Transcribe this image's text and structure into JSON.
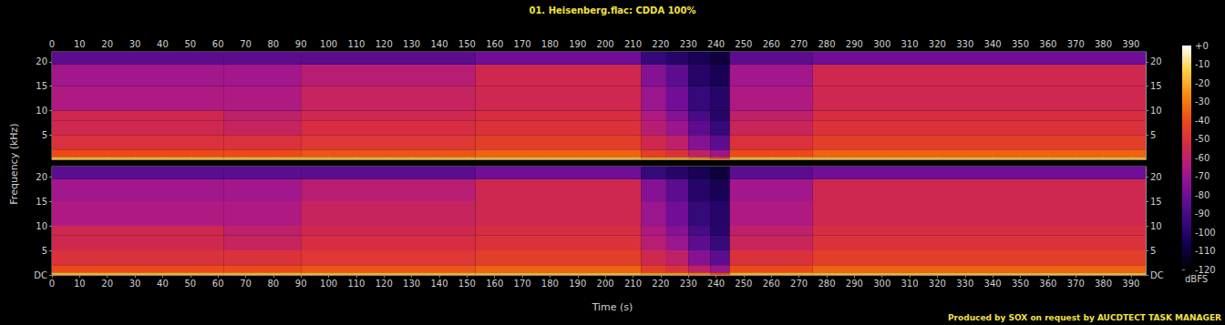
{
  "chart_data": {
    "type": "heatmap",
    "title": "01. Heisenberg.flac: CDDA 100%",
    "footer": "Produced by SOX on request by AUCDTECT TASK MANAGER",
    "xlabel": "Time (s)",
    "ylabel": "Frequency (kHz)",
    "xlim": [
      0,
      395.3
    ],
    "xticks": [
      0,
      10,
      20,
      30,
      40,
      50,
      60,
      70,
      80,
      90,
      100,
      110,
      120,
      130,
      140,
      150,
      160,
      170,
      180,
      190,
      200,
      210,
      220,
      230,
      240,
      250,
      260,
      270,
      280,
      290,
      300,
      310,
      320,
      330,
      340,
      350,
      360,
      370,
      380,
      390
    ],
    "ylim": [
      0,
      22.05
    ],
    "x_edges": [
      0,
      62,
      90,
      153,
      213,
      222,
      230,
      238,
      245,
      275,
      395.3
    ],
    "y_edges": [
      0,
      0.5,
      2,
      5,
      8,
      10,
      15,
      19.5,
      22.05
    ],
    "panels": [
      {
        "yticks": [
          5,
          10,
          15,
          20
        ],
        "cells": [
          [
            -20,
            -40,
            -50,
            -55,
            -55,
            -65,
            -68,
            -85
          ],
          [
            -20,
            -40,
            -50,
            -58,
            -60,
            -65,
            -68,
            -85
          ],
          [
            -20,
            -38,
            -48,
            -52,
            -55,
            -58,
            -62,
            -85
          ],
          [
            -20,
            -35,
            -45,
            -50,
            -52,
            -55,
            -55,
            -80
          ],
          [
            -25,
            -45,
            -55,
            -62,
            -65,
            -70,
            -75,
            -95
          ],
          [
            -25,
            -50,
            -60,
            -70,
            -75,
            -80,
            -85,
            -100
          ],
          [
            -30,
            -60,
            -75,
            -85,
            -90,
            -95,
            -100,
            -105
          ],
          [
            -40,
            -70,
            -85,
            -95,
            -100,
            -100,
            -105,
            -110
          ],
          [
            -20,
            -40,
            -50,
            -57,
            -60,
            -65,
            -68,
            -85
          ],
          [
            -20,
            -35,
            -45,
            -50,
            -52,
            -55,
            -55,
            -80
          ]
        ]
      },
      {
        "yticks": [
          {
            "value": 0,
            "label": "DC"
          },
          5,
          10,
          15,
          20
        ],
        "cells": [
          [
            -20,
            -40,
            -50,
            -55,
            -55,
            -65,
            -68,
            -85
          ],
          [
            -20,
            -40,
            -50,
            -58,
            -60,
            -65,
            -68,
            -85
          ],
          [
            -20,
            -38,
            -48,
            -52,
            -55,
            -58,
            -62,
            -85
          ],
          [
            -20,
            -35,
            -45,
            -50,
            -52,
            -55,
            -55,
            -80
          ],
          [
            -25,
            -45,
            -55,
            -62,
            -65,
            -70,
            -75,
            -95
          ],
          [
            -25,
            -50,
            -60,
            -70,
            -75,
            -80,
            -85,
            -100
          ],
          [
            -30,
            -60,
            -75,
            -85,
            -90,
            -95,
            -100,
            -105
          ],
          [
            -40,
            -70,
            -85,
            -95,
            -100,
            -100,
            -105,
            -110
          ],
          [
            -20,
            -40,
            -50,
            -57,
            -60,
            -65,
            -68,
            -85
          ],
          [
            -20,
            -35,
            -45,
            -50,
            -52,
            -55,
            -55,
            -80
          ]
        ]
      }
    ],
    "colorbar": {
      "label": "dBFS",
      "range": [
        -120,
        0
      ],
      "ticks": [
        {
          "value": 0,
          "label": "+0"
        },
        -10,
        -20,
        -30,
        -40,
        -50,
        -60,
        -70,
        -80,
        -90,
        -100,
        -110,
        -120
      ]
    }
  }
}
